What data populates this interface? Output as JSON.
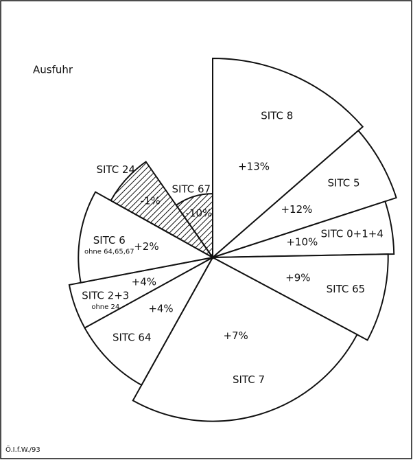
{
  "chart_data": {
    "type": "rose",
    "title": "Ausfuhr",
    "footer": "Ö.I.f.W./93",
    "categories": [
      "SITC 8",
      "SITC 5",
      "SITC 0+1+4",
      "SITC 65",
      "SITC 7",
      "SITC 64",
      "SITC 2+3",
      "SITC 6",
      "SITC 24",
      "SITC 67"
    ],
    "notes": [
      null,
      null,
      null,
      null,
      null,
      null,
      "ohne 24",
      "ohne 64,65,67",
      null,
      null
    ],
    "values": [
      13,
      12,
      10,
      9,
      7,
      4,
      4,
      2,
      -1,
      -10
    ],
    "value_labels": [
      "+13%",
      "+12%",
      "+10%",
      "+9%",
      "+7%",
      "+4%",
      "+4%",
      "+2%",
      "-1%",
      "-10%"
    ],
    "shares": [
      13.6,
      6.4,
      4.7,
      8.1,
      25.3,
      8.9,
      5.0,
      11.1,
      7.2,
      9.7
    ],
    "rlim": [
      -15,
      13
    ],
    "color": "#ffffff",
    "negative_hatched": true
  }
}
